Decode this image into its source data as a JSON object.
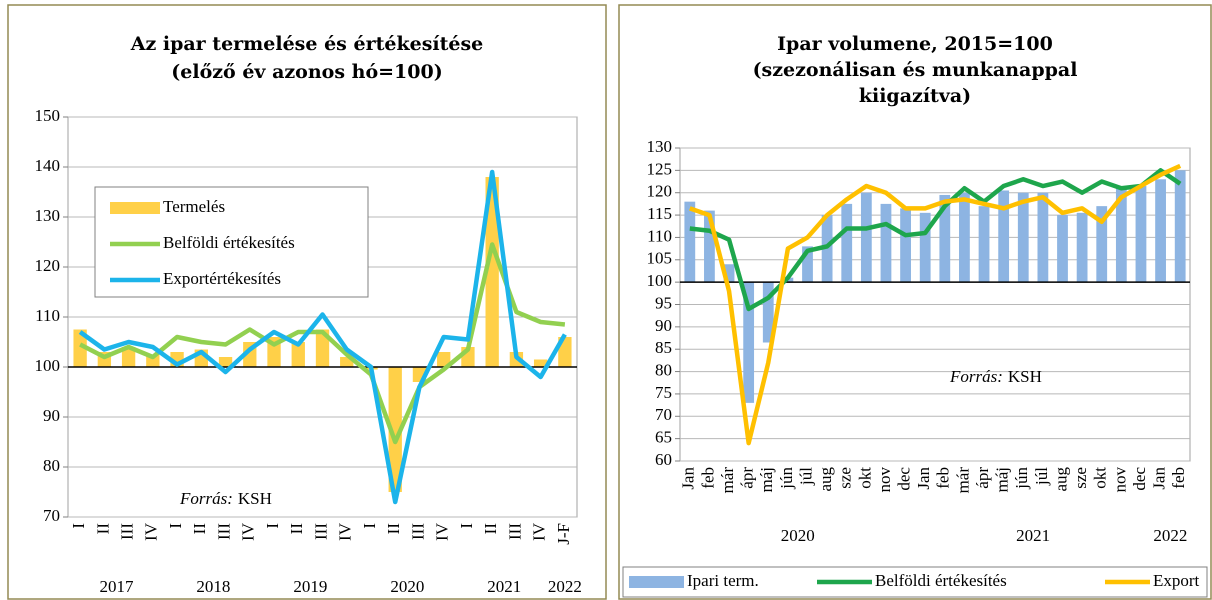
{
  "chart_data": [
    {
      "type": "combo",
      "title": [
        "Az ipar termelése és értékesítése",
        "(előző év azonos hó=100)"
      ],
      "categories": [
        "I",
        "II",
        "III",
        "IV",
        "I",
        "II",
        "III",
        "IV",
        "I",
        "II",
        "III",
        "IV",
        "I",
        "II",
        "III",
        "IV",
        "I",
        "II",
        "III",
        "IV",
        "J-F"
      ],
      "category_groups": [
        {
          "label": "2017",
          "count": 4
        },
        {
          "label": "2018",
          "count": 4
        },
        {
          "label": "2019",
          "count": 4
        },
        {
          "label": "2020",
          "count": 4
        },
        {
          "label": "2021",
          "count": 4
        },
        {
          "label": "2022",
          "count": 1
        }
      ],
      "ylim": [
        70,
        150
      ],
      "yticks": [
        70,
        80,
        90,
        100,
        110,
        120,
        130,
        140,
        150
      ],
      "grid": true,
      "baseline": 100,
      "legend": "upper left",
      "source_label": "Forrás:",
      "source": "KSH",
      "series": [
        {
          "name": "Termelés",
          "type": "bar",
          "color": "#ffd048",
          "values": [
            107.5,
            103,
            104,
            102.5,
            103,
            103.5,
            102,
            105,
            106,
            105,
            107.5,
            102,
            99.5,
            75,
            97,
            103,
            104,
            138,
            103,
            101.5,
            106
          ]
        },
        {
          "name": "Belföldi értékesítés",
          "type": "line",
          "color": "#92d050",
          "values": [
            104.5,
            102,
            104,
            102,
            106,
            105,
            104.5,
            107.5,
            104.5,
            107,
            107,
            102.5,
            98.5,
            85,
            96,
            99.5,
            103.5,
            124.5,
            111,
            109,
            108.5
          ]
        },
        {
          "name": "Exportértékesítés",
          "type": "line",
          "color": "#1cb4ea",
          "values": [
            107,
            103.5,
            105,
            104,
            100.5,
            103,
            99,
            103.5,
            107,
            104.5,
            110.5,
            103.5,
            100,
            73,
            96,
            106,
            105.5,
            139,
            102,
            98,
            106.5
          ]
        }
      ]
    },
    {
      "type": "combo",
      "title": [
        "Ipar volumene, 2015=100",
        "(szezonálisan és munkanappal",
        "kiigazítva)"
      ],
      "categories": [
        "Jan",
        "feb",
        "már",
        "ápr",
        "máj",
        "jún",
        "júl",
        "aug",
        "sze",
        "okt",
        "nov",
        "dec",
        "Jan",
        "feb",
        "már",
        "ápr",
        "máj",
        "jún",
        "júl",
        "aug",
        "sze",
        "okt",
        "nov",
        "dec",
        "Jan",
        "feb"
      ],
      "category_groups": [
        {
          "label": "2020",
          "count": 12
        },
        {
          "label": "2021",
          "count": 12
        },
        {
          "label": "2022",
          "count": 2
        }
      ],
      "ylim": [
        60,
        130
      ],
      "yticks": [
        60,
        65,
        70,
        75,
        80,
        85,
        90,
        95,
        100,
        105,
        110,
        115,
        120,
        125,
        130
      ],
      "grid": true,
      "baseline": 100,
      "legend": "bottom",
      "source_label": "Forrás:",
      "source": "KSH",
      "series": [
        {
          "name": "Ipari term.",
          "type": "bar",
          "color": "#8db4e2",
          "values": [
            118,
            116,
            104,
            73,
            86.5,
            101,
            108,
            115,
            117.5,
            120,
            117.5,
            116.5,
            115.5,
            119.5,
            120,
            117,
            120.5,
            120,
            120,
            115,
            115.5,
            117,
            121,
            121.5,
            123,
            125
          ]
        },
        {
          "name": "Belföldi értékesítés",
          "type": "line",
          "color": "#1ea64c",
          "values": [
            112,
            111.5,
            109.5,
            94,
            96.5,
            101,
            107,
            108,
            112,
            112,
            113,
            110.5,
            111,
            117,
            121,
            118,
            121.5,
            123,
            121.5,
            122.5,
            120,
            122.5,
            121,
            121.5,
            125,
            122
          ]
        },
        {
          "name": "Export",
          "type": "line",
          "color": "#ffc000",
          "values": [
            116.5,
            115,
            98,
            64,
            82,
            107.5,
            110,
            115,
            118.5,
            121.5,
            120,
            116.5,
            116.5,
            118,
            118.5,
            117.5,
            116.5,
            118,
            119,
            115.5,
            116.5,
            113.5,
            119,
            121.5,
            124,
            126
          ]
        }
      ]
    }
  ]
}
